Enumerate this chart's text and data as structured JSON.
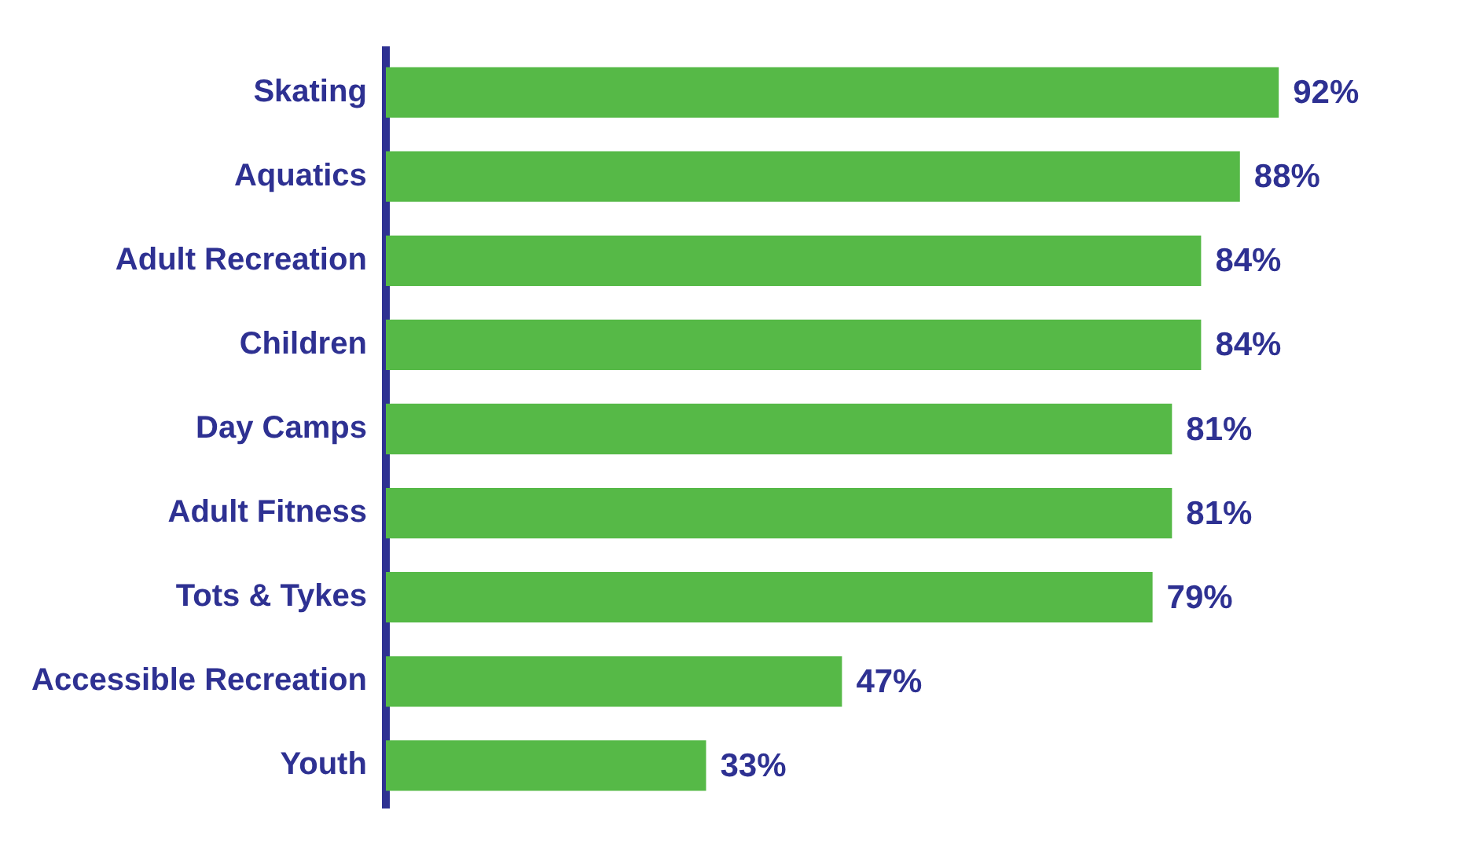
{
  "chart_data": {
    "type": "bar",
    "orientation": "horizontal",
    "categories": [
      "Skating",
      "Aquatics",
      "Adult Recreation",
      "Children",
      "Day Camps",
      "Adult Fitness",
      "Tots & Tykes",
      "Accessible Recreation",
      "Youth"
    ],
    "values": [
      92,
      88,
      84,
      84,
      81,
      81,
      79,
      47,
      33
    ],
    "value_labels": [
      "92%",
      "88%",
      "84%",
      "84%",
      "81%",
      "81%",
      "79%",
      "47%",
      "33%"
    ],
    "color": "#56b947",
    "tick_labels": "y"
  }
}
